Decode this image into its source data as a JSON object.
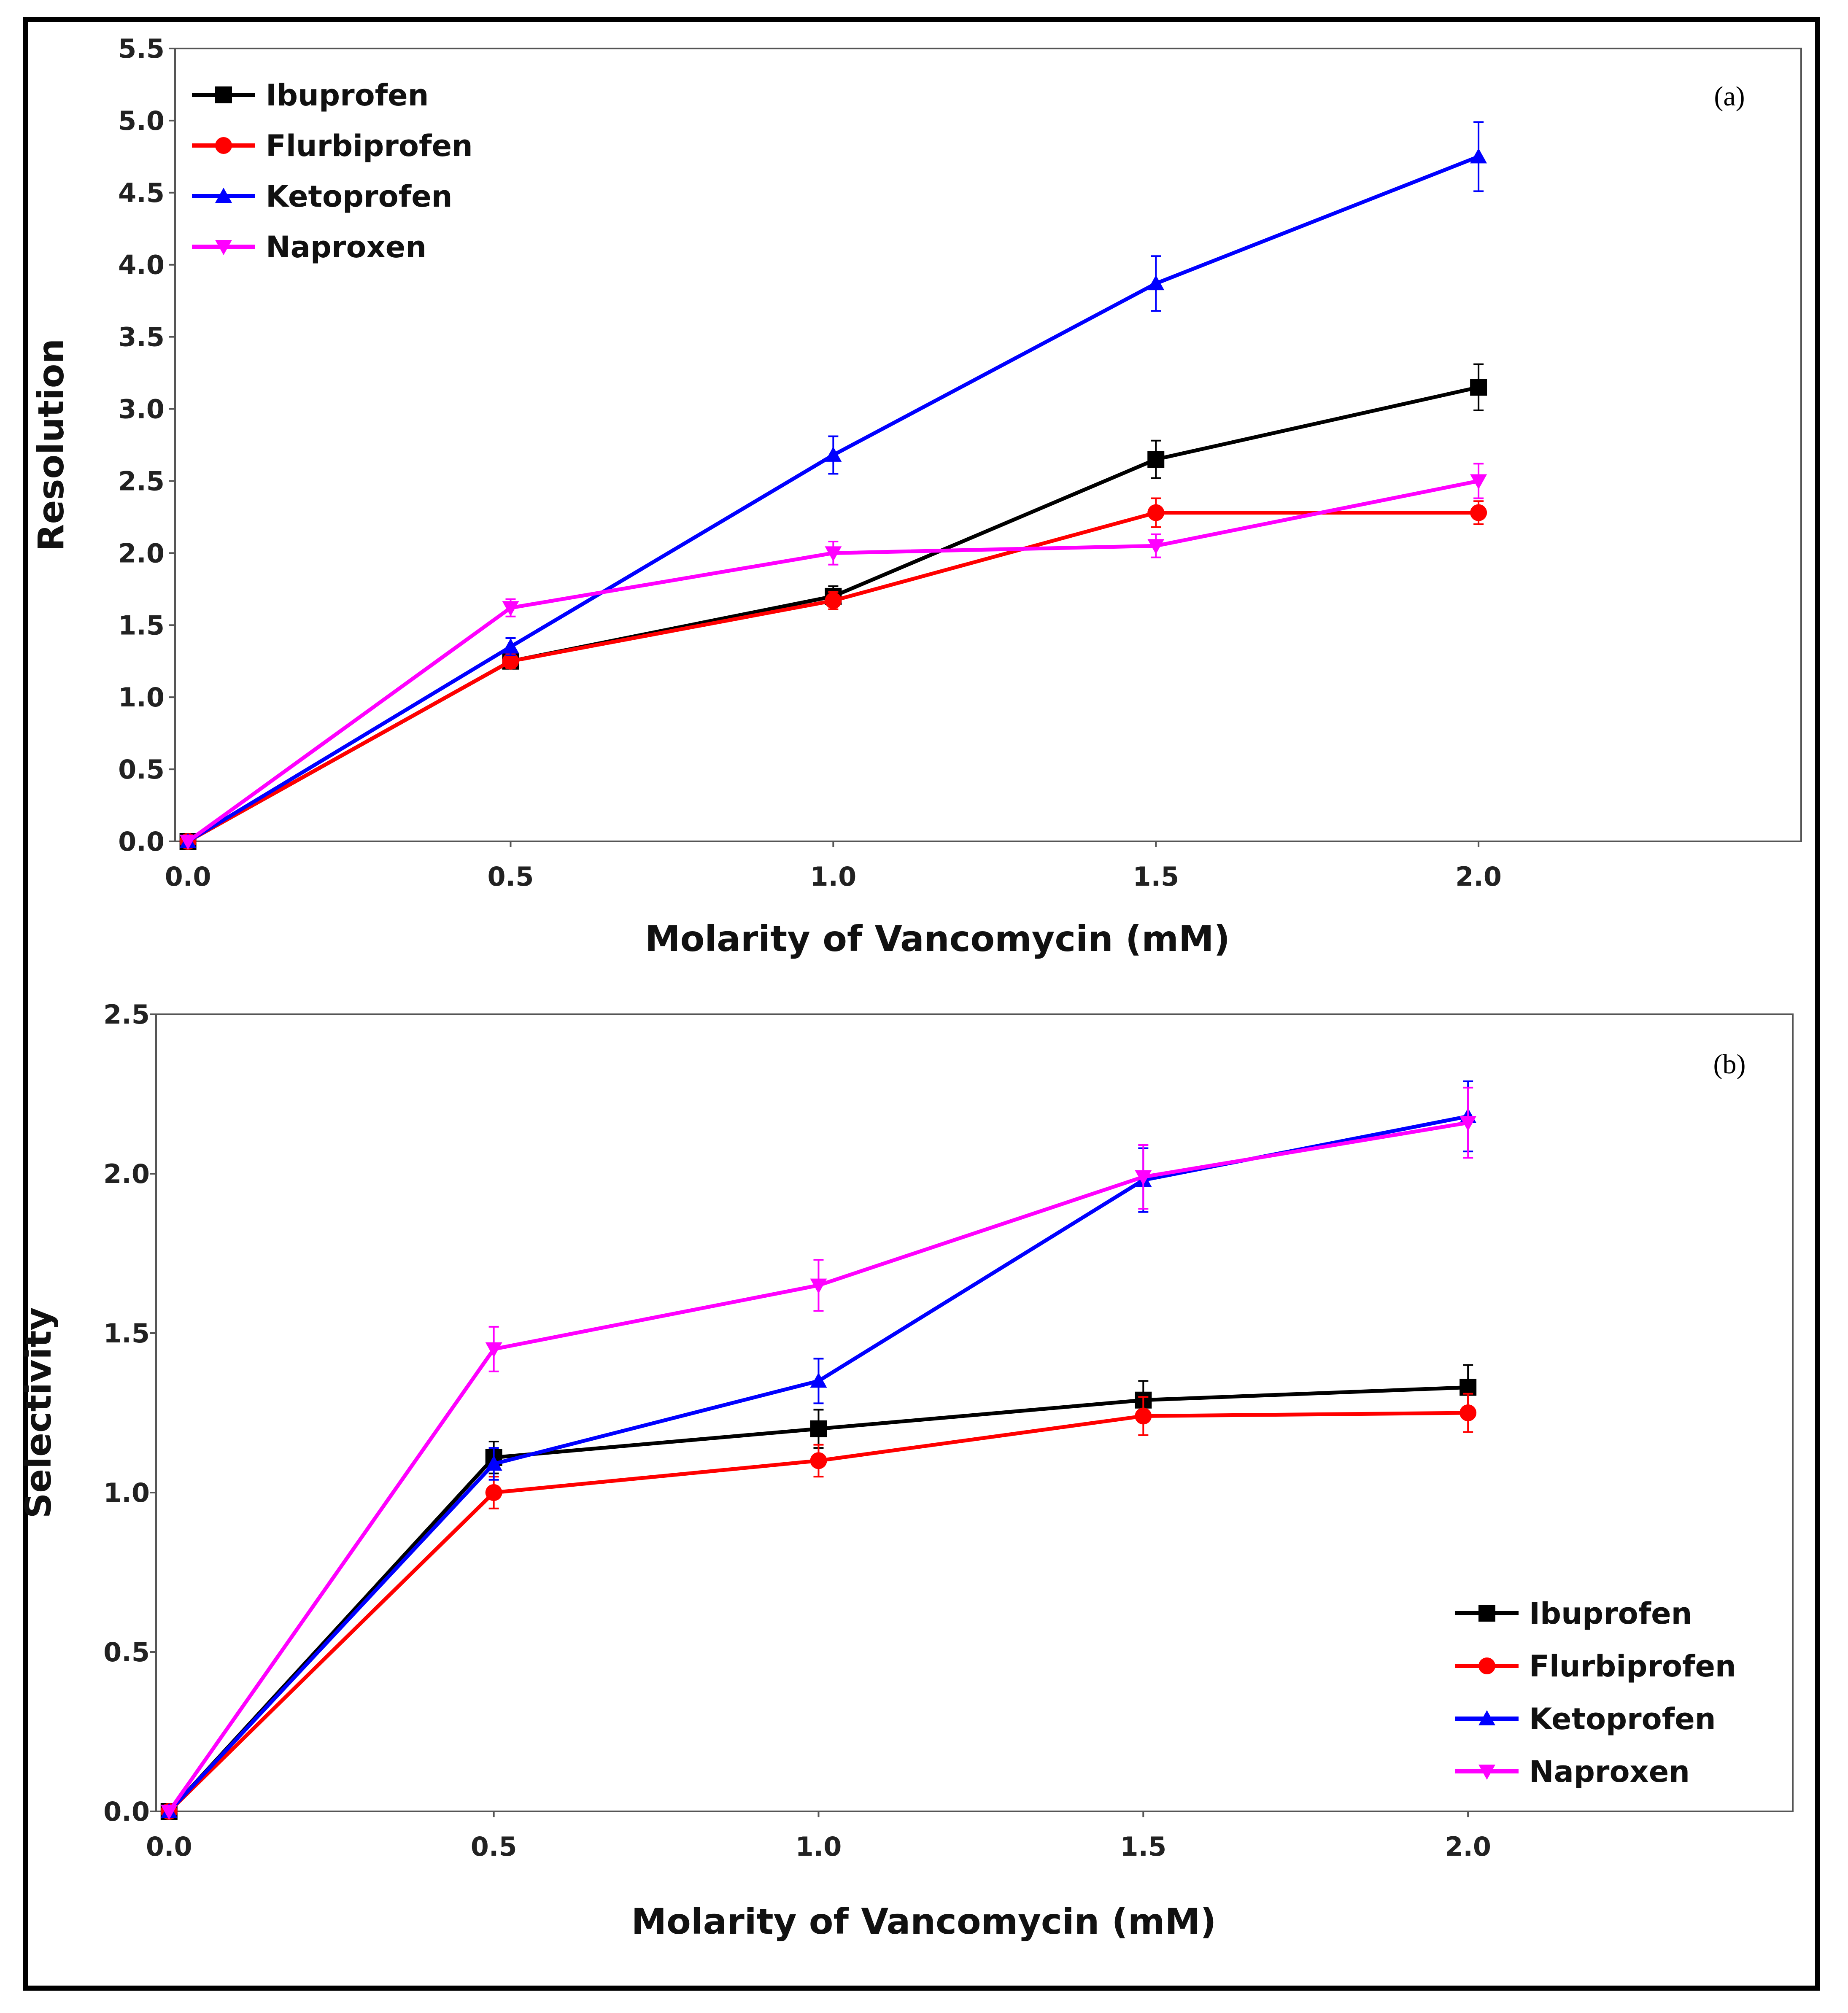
{
  "chart_data": [
    {
      "type": "line",
      "panel_label": "(a)",
      "xlabel": "Molarity of Vancomycin (mM)",
      "ylabel": "Resolution",
      "x": [
        0.0,
        0.5,
        1.0,
        1.5,
        2.0
      ],
      "x_ticks": [
        "0.0",
        "0.5",
        "1.0",
        "1.5",
        "2.0"
      ],
      "y_ticks": [
        "0.0",
        "0.5",
        "1.0",
        "1.5",
        "2.0",
        "2.5",
        "3.0",
        "3.5",
        "4.0",
        "4.5",
        "5.0",
        "5.5"
      ],
      "xlim": [
        -0.02,
        2.5
      ],
      "ylim": [
        0,
        5.5
      ],
      "legend_position": "top-left",
      "series": [
        {
          "name": "Ibuprofen",
          "color": "#000000",
          "marker": "square",
          "values": [
            0.0,
            1.25,
            1.7,
            2.65,
            3.15
          ],
          "errors": [
            0,
            0.05,
            0.07,
            0.13,
            0.16
          ]
        },
        {
          "name": "Flurbiprofen",
          "color": "#ff0000",
          "marker": "circle",
          "values": [
            0.0,
            1.25,
            1.67,
            2.28,
            2.28
          ],
          "errors": [
            0,
            0.05,
            0.06,
            0.1,
            0.08
          ]
        },
        {
          "name": "Ketoprofen",
          "color": "#0000ff",
          "marker": "triangle-up",
          "values": [
            0.0,
            1.35,
            2.68,
            3.87,
            4.75
          ],
          "errors": [
            0,
            0.06,
            0.13,
            0.19,
            0.24
          ]
        },
        {
          "name": "Naproxen",
          "color": "#ff00ff",
          "marker": "triangle-down",
          "values": [
            0.0,
            1.62,
            2.0,
            2.05,
            2.5
          ],
          "errors": [
            0,
            0.06,
            0.08,
            0.08,
            0.12
          ]
        }
      ]
    },
    {
      "type": "line",
      "panel_label": "(b)",
      "xlabel": "Molarity of Vancomycin (mM)",
      "ylabel": "Selectivity",
      "x": [
        0.0,
        0.5,
        1.0,
        1.5,
        2.0
      ],
      "x_ticks": [
        "0.0",
        "0.5",
        "1.0",
        "1.5",
        "2.0"
      ],
      "y_ticks": [
        "0.0",
        "0.5",
        "1.0",
        "1.5",
        "2.0",
        "2.5"
      ],
      "xlim": [
        -0.02,
        2.5
      ],
      "ylim": [
        0,
        2.5
      ],
      "legend_position": "bottom-right",
      "series": [
        {
          "name": "Ibuprofen",
          "color": "#000000",
          "marker": "square",
          "values": [
            0.0,
            1.11,
            1.2,
            1.29,
            1.33
          ],
          "errors": [
            0,
            0.05,
            0.06,
            0.06,
            0.07
          ]
        },
        {
          "name": "Flurbiprofen",
          "color": "#ff0000",
          "marker": "circle",
          "values": [
            0.0,
            1.0,
            1.1,
            1.24,
            1.25
          ],
          "errors": [
            0,
            0.05,
            0.05,
            0.06,
            0.06
          ]
        },
        {
          "name": "Ketoprofen",
          "color": "#0000ff",
          "marker": "triangle-up",
          "values": [
            0.0,
            1.09,
            1.35,
            1.98,
            2.18
          ],
          "errors": [
            0,
            0.05,
            0.07,
            0.1,
            0.11
          ]
        },
        {
          "name": "Naproxen",
          "color": "#ff00ff",
          "marker": "triangle-down",
          "values": [
            0.0,
            1.45,
            1.65,
            1.99,
            2.16
          ],
          "errors": [
            0,
            0.07,
            0.08,
            0.1,
            0.11
          ]
        }
      ]
    }
  ]
}
